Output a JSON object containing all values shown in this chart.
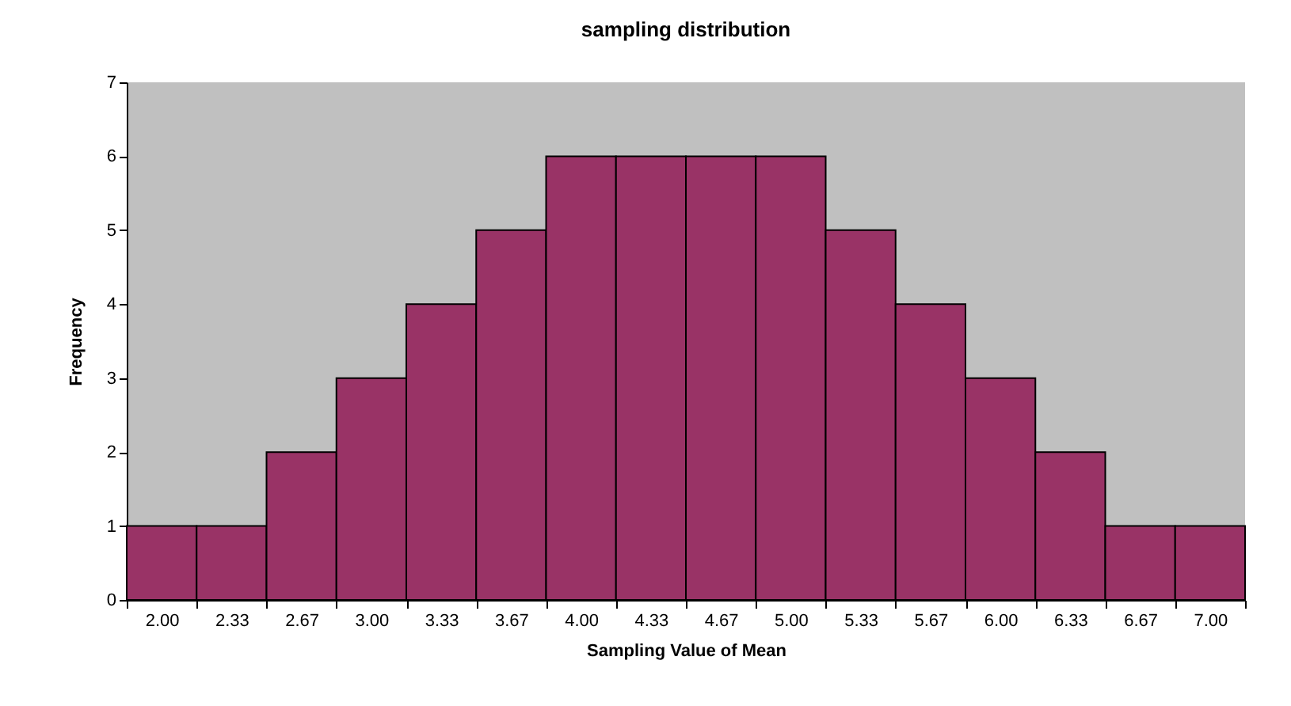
{
  "chart_data": {
    "type": "bar",
    "title": "sampling distribution",
    "xlabel": "Sampling Value of Mean",
    "ylabel": "Frequency",
    "categories": [
      "2.00",
      "2.33",
      "2.67",
      "3.00",
      "3.33",
      "3.67",
      "4.00",
      "4.33",
      "4.67",
      "5.00",
      "5.33",
      "5.67",
      "6.00",
      "6.33",
      "6.67",
      "7.00"
    ],
    "values": [
      1,
      1,
      2,
      3,
      4,
      5,
      6,
      6,
      6,
      6,
      5,
      4,
      3,
      2,
      1,
      1
    ],
    "color": "#993366",
    "ylim": [
      0,
      7
    ],
    "yticks": [
      0,
      1,
      2,
      3,
      4,
      5,
      6,
      7
    ],
    "grid": false
  }
}
